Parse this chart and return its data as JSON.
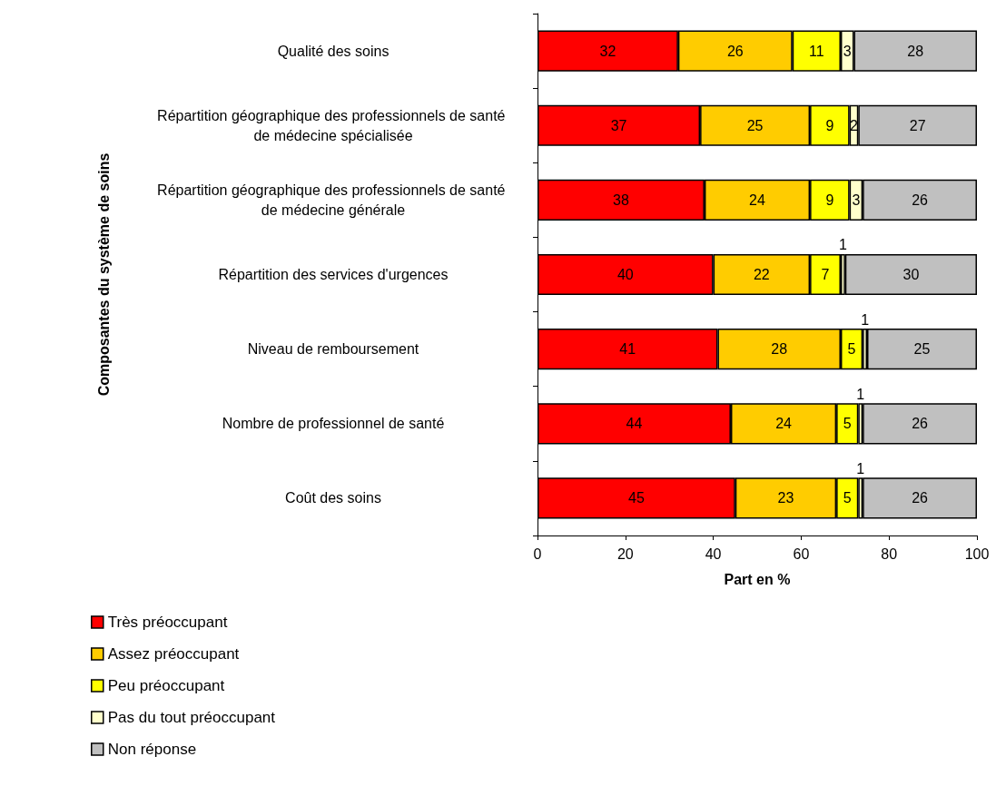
{
  "chart_data": {
    "type": "bar",
    "orientation": "horizontal",
    "stacked": true,
    "data_labels": true,
    "grid": false,
    "legend": "bottom left",
    "xlabel": "Part en %",
    "ylabel": "Composantes du système de soins",
    "categories": [
      "Qualité des soins",
      "Répartition géographique des professionnels de santé de médecine spécialisée",
      "Répartition géographique des professionnels de santé de médecine générale",
      "Répartition des services d'urgences",
      "Niveau de remboursement",
      "Nombre de professionnel de santé",
      "Coût des soins"
    ],
    "xlim": [
      0,
      100
    ],
    "xticks": [
      0,
      20,
      40,
      60,
      80,
      100
    ],
    "series": [
      {
        "name": "Très préoccupant",
        "color": "#ff0000",
        "values": [
          32,
          37,
          38,
          40,
          41,
          44,
          45
        ]
      },
      {
        "name": "Assez préoccupant",
        "color": "#ffcc00",
        "values": [
          26,
          25,
          24,
          22,
          28,
          24,
          23
        ]
      },
      {
        "name": "Peu préoccupant",
        "color": "#ffff00",
        "values": [
          11,
          9,
          9,
          7,
          5,
          5,
          5
        ]
      },
      {
        "name": "Pas du tout préoccupant",
        "color": "#ffffcc",
        "values": [
          3,
          2,
          3,
          1,
          1,
          1,
          1
        ]
      },
      {
        "name": "Non réponse",
        "color": "#c0c0c0",
        "values": [
          28,
          27,
          26,
          30,
          25,
          26,
          26
        ]
      }
    ]
  }
}
